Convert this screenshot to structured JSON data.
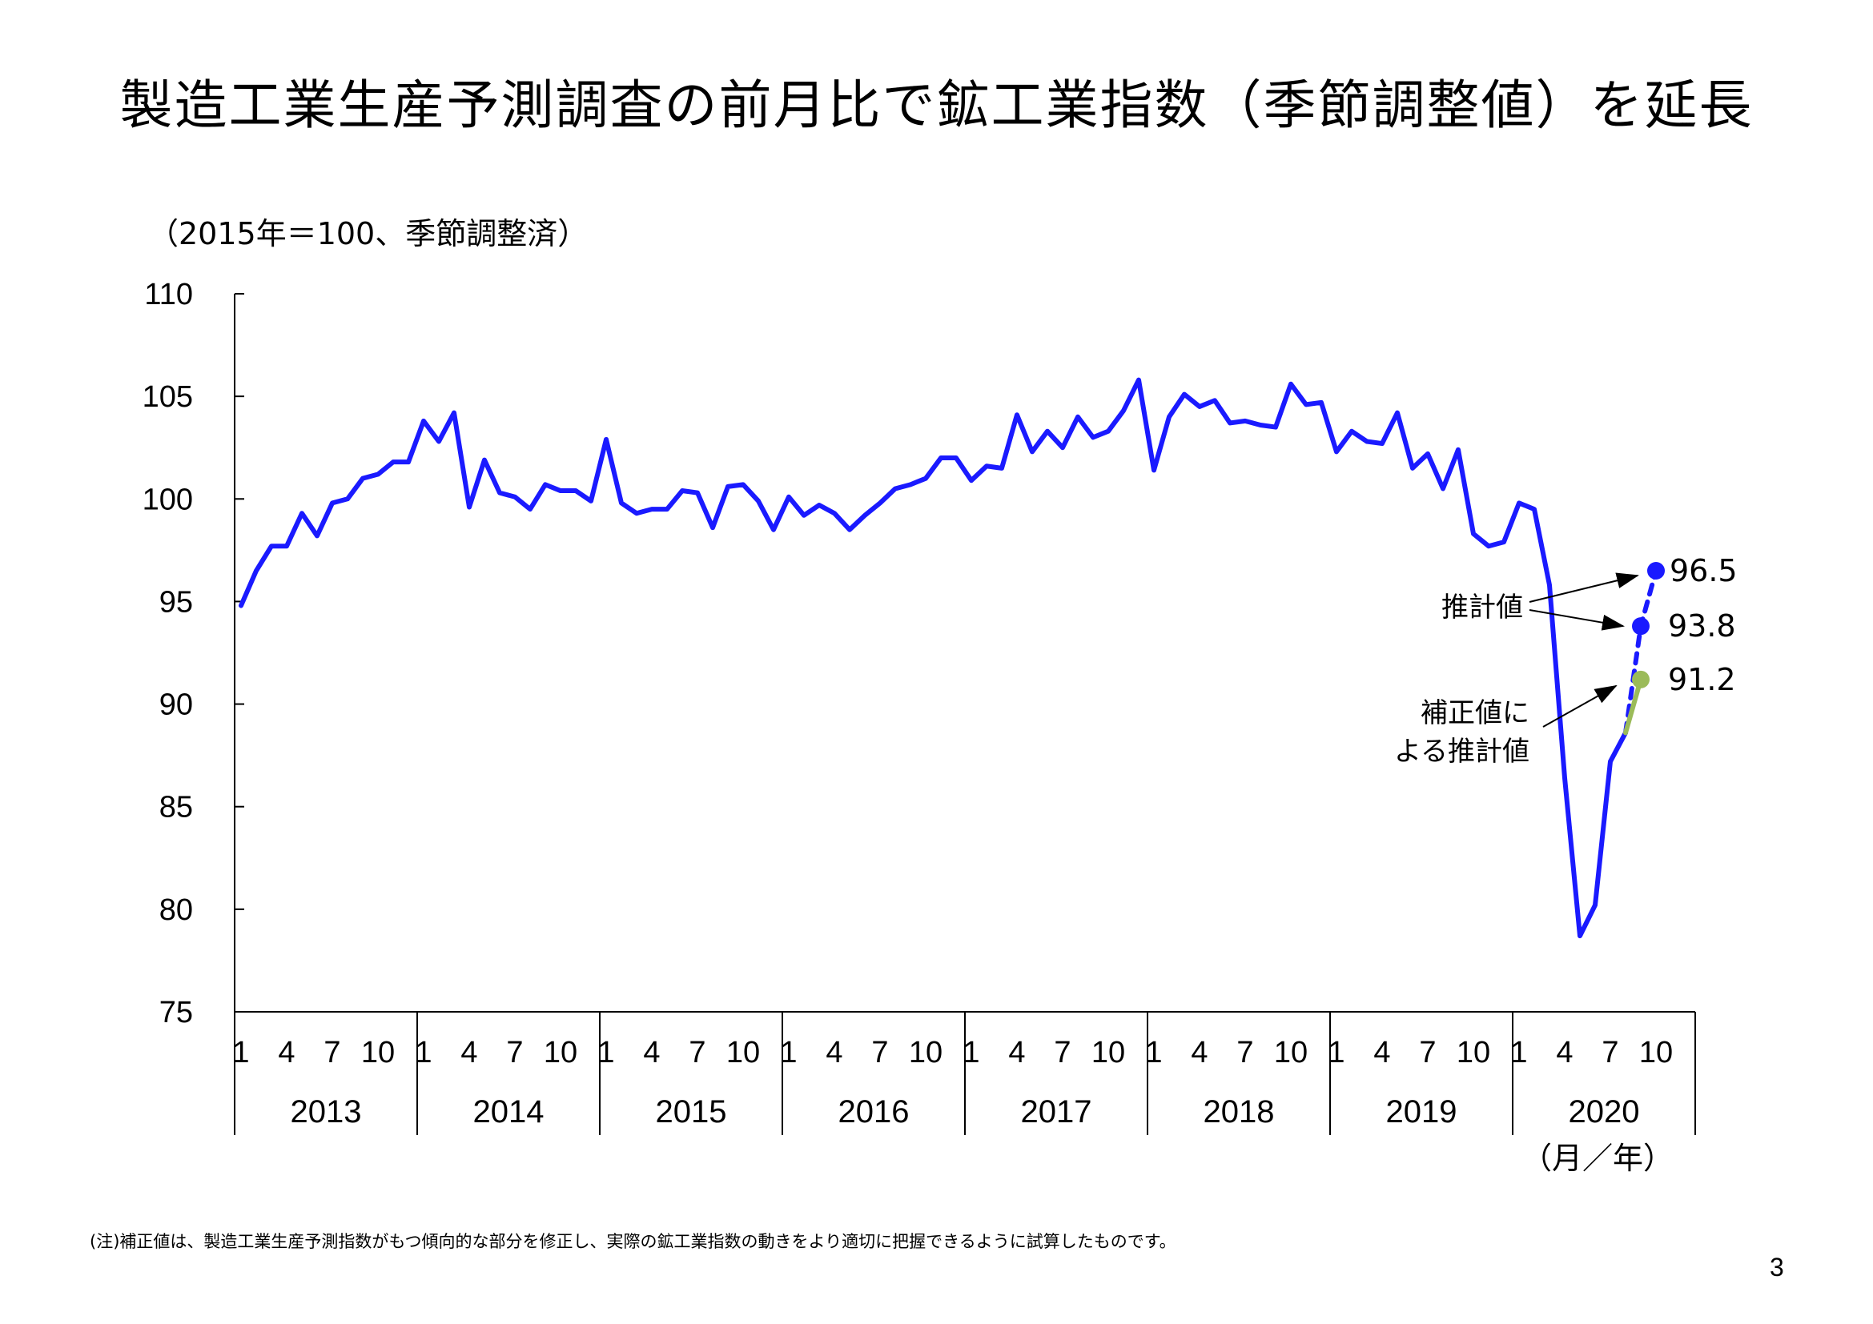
{
  "page": {
    "title": "製造工業生産予測調査の前月比で鉱工業指数（季節調整値）を延長",
    "footnote": "(注)補正値は、製造工業生産予測指数がもつ傾向的な部分を修正し、実際の鉱工業指数の動きをより適切に把握できるように試算したものです。",
    "page_number": "3"
  },
  "chart_data": {
    "type": "line",
    "unit_label": "（2015年＝100、季節調整済）",
    "xlabel": "（月／年）",
    "ylim": [
      75,
      110
    ],
    "yticks": [
      75,
      80,
      85,
      90,
      95,
      100,
      105,
      110
    ],
    "years": [
      "2013",
      "2014",
      "2015",
      "2016",
      "2017",
      "2018",
      "2019",
      "2020"
    ],
    "month_ticks": [
      "1",
      "4",
      "7",
      "10"
    ],
    "colors": {
      "actual": "#1a1aff",
      "corrected": "#9bbb59",
      "axis": "#000000"
    },
    "series": [
      {
        "key": "actual",
        "start": "2013-01",
        "values": [
          94.8,
          96.5,
          97.7,
          97.7,
          99.3,
          98.2,
          99.8,
          100.0,
          101.0,
          101.2,
          101.8,
          101.8,
          103.8,
          102.8,
          104.2,
          99.6,
          101.9,
          100.3,
          100.1,
          99.5,
          100.7,
          100.4,
          100.4,
          99.9,
          102.9,
          99.8,
          99.3,
          99.5,
          99.5,
          100.4,
          100.3,
          98.6,
          100.6,
          100.7,
          99.9,
          98.5,
          100.1,
          99.2,
          99.7,
          99.3,
          98.5,
          99.2,
          99.8,
          100.5,
          100.7,
          101.0,
          102.0,
          102.0,
          100.9,
          101.6,
          101.5,
          104.1,
          102.3,
          103.3,
          102.5,
          104.0,
          103.0,
          103.3,
          104.3,
          105.8,
          101.4,
          104.0,
          105.1,
          104.5,
          104.8,
          103.7,
          103.8,
          103.6,
          103.5,
          105.6,
          104.6,
          104.7,
          102.3,
          103.3,
          102.8,
          102.7,
          104.2,
          101.5,
          102.2,
          100.5,
          102.4,
          98.3,
          97.7,
          97.9,
          99.8,
          99.5,
          95.8,
          86.4,
          78.7,
          80.2,
          87.2,
          88.6
        ]
      },
      {
        "key": "forecast_upper",
        "dashed": true,
        "x_months": [
          "2020-08",
          "2020-09",
          "2020-10"
        ],
        "values": [
          88.6,
          93.8,
          96.5
        ]
      },
      {
        "key": "corrected",
        "x_months": [
          "2020-08",
          "2020-09"
        ],
        "values": [
          88.6,
          91.2
        ]
      }
    ],
    "points": [
      {
        "month": "2020-10",
        "value": 96.5,
        "label": "96.5",
        "color": "#1a1aff"
      },
      {
        "month": "2020-09",
        "value": 93.8,
        "label": "93.8",
        "color": "#1a1aff"
      },
      {
        "month": "2020-09",
        "value": 91.2,
        "label": "91.2",
        "color": "#9bbb59"
      }
    ],
    "annotations": [
      {
        "text": "推計値",
        "targets": [
          "96.5",
          "93.8"
        ]
      },
      {
        "text_lines": [
          "補正値に",
          "よる推計値"
        ],
        "targets": [
          "91.2"
        ]
      }
    ]
  }
}
